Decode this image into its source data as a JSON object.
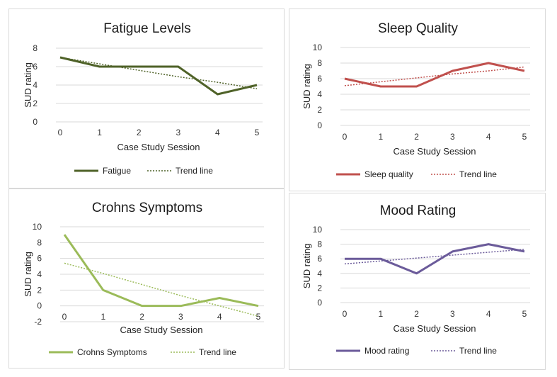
{
  "chart_data": [
    {
      "type": "line",
      "title": "Fatigue Levels",
      "xlabel": "Case Study Session",
      "ylabel": "SUD rating",
      "x": [
        0,
        1,
        2,
        3,
        4,
        5
      ],
      "ylim": [
        0,
        8
      ],
      "yticks": [
        0,
        2,
        4,
        6,
        8
      ],
      "color": "#4f6228",
      "series": [
        {
          "name": "Fatigue",
          "values": [
            7,
            6,
            6,
            6,
            3,
            4
          ]
        },
        {
          "name": "Trend line",
          "values": [
            7.0,
            6.3,
            5.6,
            4.9,
            4.3,
            3.6
          ],
          "dotted": true
        }
      ]
    },
    {
      "type": "line",
      "title": "Sleep Quality",
      "xlabel": "Case Study Session",
      "ylabel": "SUD rating",
      "x": [
        0,
        1,
        2,
        3,
        4,
        5
      ],
      "ylim": [
        0,
        10
      ],
      "yticks": [
        0,
        2,
        4,
        6,
        8,
        10
      ],
      "color": "#c0504d",
      "series": [
        {
          "name": "Sleep quality",
          "values": [
            6,
            5,
            5,
            7,
            8,
            7
          ]
        },
        {
          "name": "Trend line",
          "values": [
            5.1,
            5.6,
            6.1,
            6.6,
            7.0,
            7.5
          ],
          "dotted": true
        }
      ]
    },
    {
      "type": "line",
      "title": "Crohns Symptoms",
      "xlabel": "Case Study Session",
      "ylabel": "SUD rating",
      "x": [
        0,
        1,
        2,
        3,
        4,
        5
      ],
      "ylim": [
        -2,
        10
      ],
      "yticks": [
        -2,
        0,
        2,
        4,
        6,
        8,
        10
      ],
      "color": "#9bbb59",
      "series": [
        {
          "name": "Crohns Symptoms",
          "values": [
            9,
            2,
            0,
            0,
            1,
            0
          ]
        },
        {
          "name": "Trend line",
          "values": [
            5.4,
            4.1,
            2.7,
            1.3,
            0.0,
            -1.3
          ],
          "dotted": true
        }
      ]
    },
    {
      "type": "line",
      "title": "Mood Rating",
      "xlabel": "Case Study Session",
      "ylabel": "SUD rating",
      "x": [
        0,
        1,
        2,
        3,
        4,
        5
      ],
      "ylim": [
        0,
        10
      ],
      "yticks": [
        0,
        2,
        4,
        6,
        8,
        10
      ],
      "color": "#6b5b9a",
      "series": [
        {
          "name": "Mood rating",
          "values": [
            6,
            6,
            4,
            7,
            8,
            7
          ]
        },
        {
          "name": "Trend line",
          "values": [
            5.3,
            5.7,
            6.1,
            6.5,
            6.9,
            7.3
          ],
          "dotted": true
        }
      ]
    }
  ]
}
